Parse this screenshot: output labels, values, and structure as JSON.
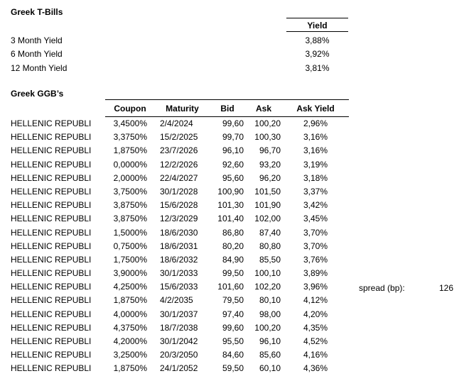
{
  "colors": {
    "background": "#ffffff",
    "text": "#000000",
    "border": "#000000"
  },
  "tbills": {
    "title": "Greek T-Bills",
    "yield_header": "Yield",
    "rows": [
      {
        "label": "3 Month Yield",
        "value": "3,88%"
      },
      {
        "label": "6 Month Yield",
        "value": "3,92%"
      },
      {
        "label": "12 Month Yield",
        "value": "3,81%"
      }
    ]
  },
  "ggbs": {
    "title": "Greek GGB’s",
    "issuer": "HELLENIC REPUBLI",
    "columns": [
      "Coupon",
      "Maturity",
      "Bid",
      "Ask",
      "Ask Yield"
    ],
    "rows": [
      [
        "3,4500%",
        "2/4/2024",
        "99,60",
        "100,20",
        "2,96%"
      ],
      [
        "3,3750%",
        "15/2/2025",
        "99,70",
        "100,30",
        "3,16%"
      ],
      [
        "1,8750%",
        "23/7/2026",
        "96,10",
        "96,70",
        "3,16%"
      ],
      [
        "0,0000%",
        "12/2/2026",
        "92,60",
        "93,20",
        "3,19%"
      ],
      [
        "2,0000%",
        "22/4/2027",
        "95,60",
        "96,20",
        "3,18%"
      ],
      [
        "3,7500%",
        "30/1/2028",
        "100,90",
        "101,50",
        "3,37%"
      ],
      [
        "3,8750%",
        "15/6/2028",
        "101,30",
        "101,90",
        "3,42%"
      ],
      [
        "3,8750%",
        "12/3/2029",
        "101,40",
        "102,00",
        "3,45%"
      ],
      [
        "1,5000%",
        "18/6/2030",
        "86,80",
        "87,40",
        "3,70%"
      ],
      [
        "0,7500%",
        "18/6/2031",
        "80,20",
        "80,80",
        "3,70%"
      ],
      [
        "1,7500%",
        "18/6/2032",
        "84,90",
        "85,50",
        "3,76%"
      ],
      [
        "3,9000%",
        "30/1/2033",
        "99,50",
        "100,10",
        "3,89%"
      ],
      [
        "4,2500%",
        "15/6/2033",
        "101,60",
        "102,20",
        "3,96%"
      ],
      [
        "1,8750%",
        "4/2/2035",
        "79,50",
        "80,10",
        "4,12%"
      ],
      [
        "4,0000%",
        "30/1/2037",
        "97,40",
        "98,00",
        "4,20%"
      ],
      [
        "4,3750%",
        "18/7/2038",
        "99,60",
        "100,20",
        "4,35%"
      ],
      [
        "4,2000%",
        "30/1/2042",
        "95,50",
        "96,10",
        "4,52%"
      ],
      [
        "3,2500%",
        "20/3/2050",
        "84,60",
        "85,60",
        "4,16%"
      ],
      [
        "1,8750%",
        "24/1/2052",
        "59,50",
        "60,10",
        "4,36%"
      ]
    ]
  },
  "spread": {
    "label": "spread (bp):",
    "value": "126"
  }
}
